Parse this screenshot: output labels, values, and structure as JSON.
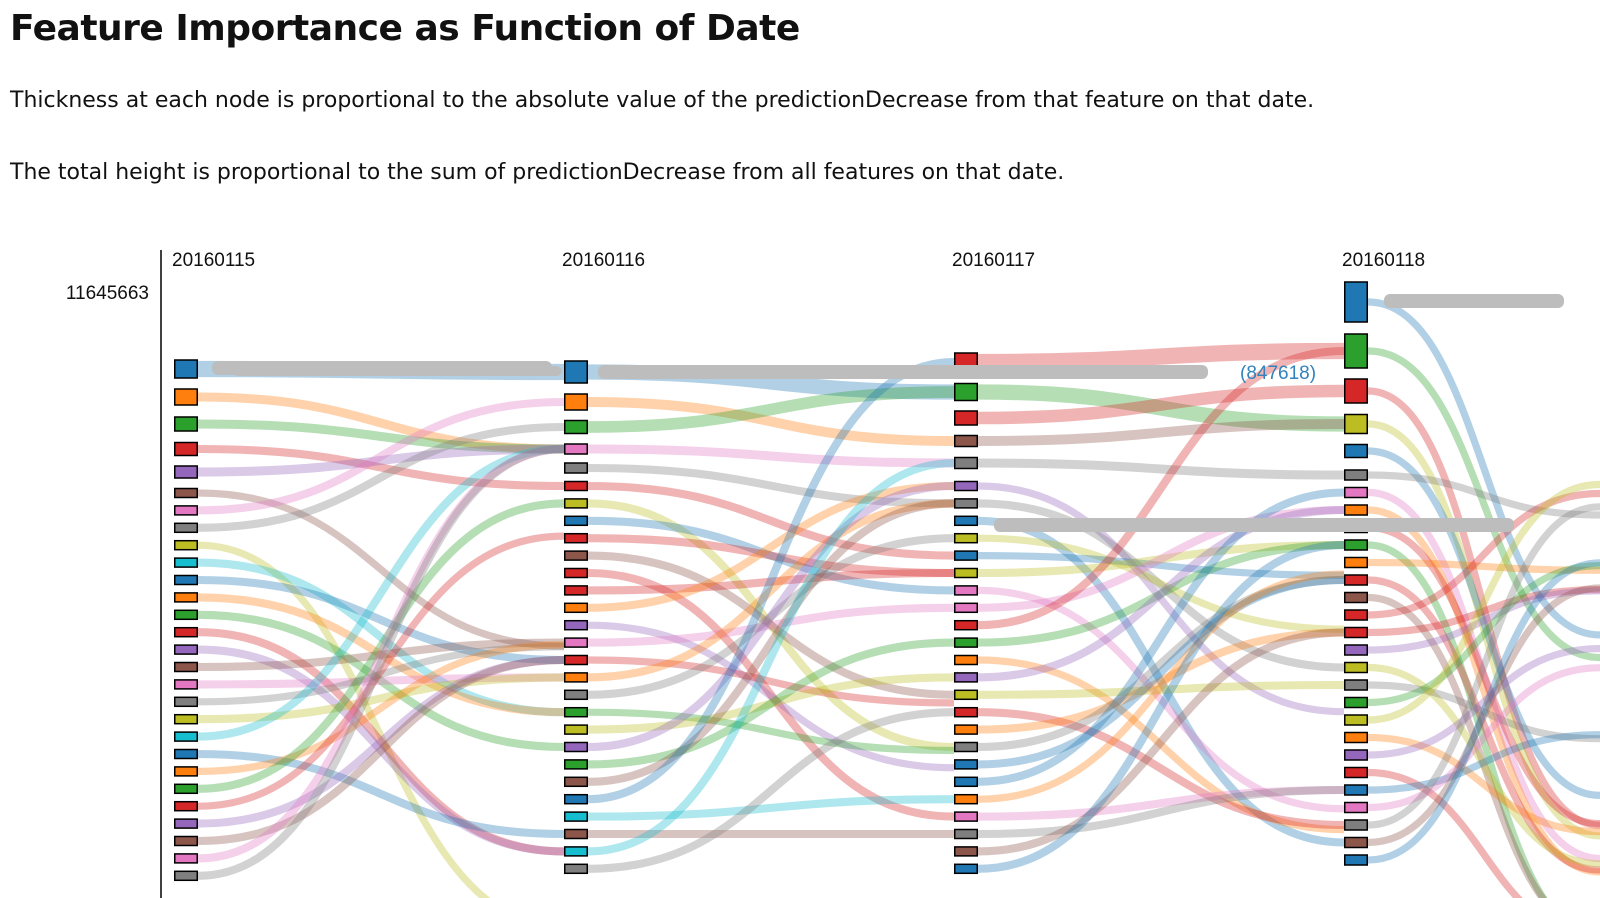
{
  "header": {
    "title": "Feature Importance as Function of Date",
    "description_1": "Thickness at each node is proportional to the absolute value of the predictionDecrease from that feature on that date.",
    "description_2": "The total height is proportional to the sum of predictionDecrease from all features on that date."
  },
  "chart_data": {
    "type": "sankey-rank-flow",
    "dates": [
      "20160115",
      "20160116",
      "20160117",
      "20160118"
    ],
    "y_axis_max_label": "11645663",
    "highlight_value_label": "(847618)",
    "palette": [
      "#1f77b4",
      "#ff7f0e",
      "#2ca02c",
      "#d62728",
      "#9467bd",
      "#8c564b",
      "#e377c2",
      "#7f7f7f",
      "#bcbd22",
      "#17becf"
    ],
    "node_colors": [
      [
        "#1f77b4",
        "#ff7f0e",
        "#2ca02c",
        "#d62728",
        "#9467bd",
        "#8c564b",
        "#e377c2",
        "#7f7f7f",
        "#bcbd22",
        "#17becf",
        "#1f77b4",
        "#ff7f0e",
        "#2ca02c",
        "#d62728",
        "#9467bd",
        "#8c564b",
        "#e377c2",
        "#7f7f7f",
        "#bcbd22",
        "#17becf",
        "#1f77b4",
        "#ff7f0e",
        "#2ca02c",
        "#d62728",
        "#9467bd",
        "#8c564b",
        "#e377c2",
        "#7f7f7f"
      ],
      [
        "#1f77b4",
        "#ff7f0e",
        "#2ca02c",
        "#e377c2",
        "#7f7f7f",
        "#d62728",
        "#bcbd22",
        "#1f77b4",
        "#d62728",
        "#8c564b",
        "#d62728",
        "#d62728",
        "#ff7f0e",
        "#9467bd",
        "#e377c2",
        "#d62728",
        "#ff7f0e",
        "#7f7f7f",
        "#2ca02c",
        "#bcbd22",
        "#9467bd",
        "#2ca02c",
        "#8c564b",
        "#1f77b4",
        "#17becf",
        "#8c564b",
        "#17becf",
        "#7f7f7f"
      ],
      [
        "#d62728",
        "#2ca02c",
        "#d62728",
        "#8c564b",
        "#7f7f7f",
        "#9467bd",
        "#7f7f7f",
        "#1f77b4",
        "#bcbd22",
        "#1f77b4",
        "#bcbd22",
        "#e377c2",
        "#e377c2",
        "#d62728",
        "#2ca02c",
        "#ff7f0e",
        "#9467bd",
        "#bcbd22",
        "#d62728",
        "#ff7f0e",
        "#7f7f7f",
        "#1f77b4",
        "#1f77b4",
        "#ff7f0e",
        "#e377c2",
        "#7f7f7f",
        "#8c564b",
        "#1f77b4"
      ],
      [
        "#1f77b4",
        "#2ca02c",
        "#d62728",
        "#bcbd22",
        "#1f77b4",
        "#7f7f7f",
        "#e377c2",
        "#ff7f0e",
        "#d62728",
        "#2ca02c",
        "#ff7f0e",
        "#d62728",
        "#8c564b",
        "#d62728",
        "#d62728",
        "#9467bd",
        "#bcbd22",
        "#7f7f7f",
        "#2ca02c",
        "#bcbd22",
        "#ff7f0e",
        "#9467bd",
        "#d62728",
        "#1f77b4",
        "#e377c2",
        "#7f7f7f",
        "#8c564b",
        "#1f77b4"
      ]
    ]
  }
}
